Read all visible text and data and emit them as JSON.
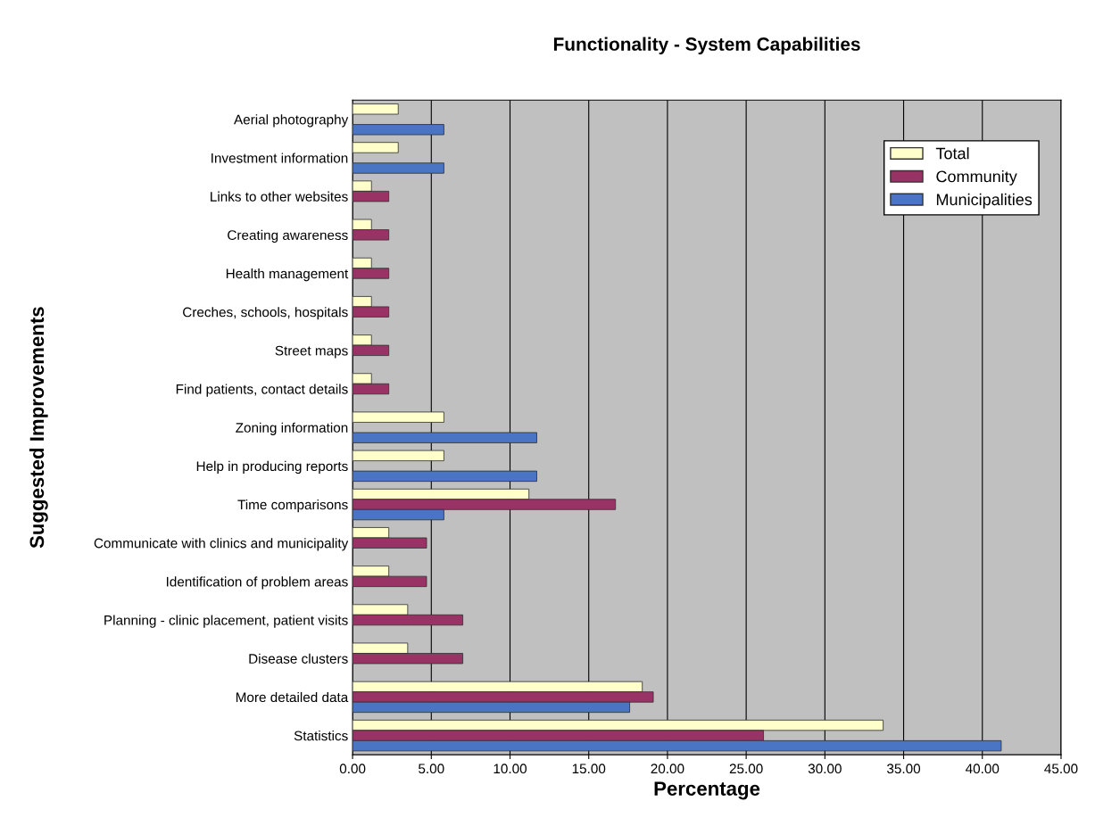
{
  "chart_data": {
    "type": "bar",
    "orientation": "horizontal",
    "title": "Functionality - System Capabilities",
    "xlabel": "Percentage",
    "ylabel": "Suggested Improvements",
    "categories": [
      "Aerial photography",
      "Investment information",
      "Links to other websites",
      "Creating awareness",
      "Health management",
      "Creches, schools, hospitals",
      "Street maps",
      "Find patients, contact details",
      "Zoning information",
      "Help in producing reports",
      "Time comparisons",
      "Communicate with clinics and municipality",
      "Identification of problem areas",
      "Planning - clinic placement, patient visits",
      "Disease clusters",
      "More detailed data",
      "Statistics"
    ],
    "series": [
      {
        "name": "Total",
        "color": "#ffffcc",
        "values": [
          2.9,
          2.9,
          1.2,
          1.2,
          1.2,
          1.2,
          1.2,
          1.2,
          5.8,
          5.8,
          11.2,
          2.3,
          2.3,
          3.5,
          3.5,
          18.4,
          33.7
        ]
      },
      {
        "name": "Community",
        "color": "#993366",
        "values": [
          null,
          null,
          2.3,
          2.3,
          2.3,
          2.3,
          2.3,
          2.3,
          null,
          null,
          16.7,
          4.7,
          4.7,
          7.0,
          7.0,
          19.1,
          26.1
        ]
      },
      {
        "name": "Municipalities",
        "color": "#4a74c4",
        "values": [
          5.8,
          5.8,
          null,
          null,
          null,
          null,
          null,
          null,
          11.7,
          11.7,
          5.8,
          null,
          null,
          null,
          null,
          17.6,
          41.2
        ]
      }
    ],
    "xlim": [
      0,
      45
    ],
    "xticks": [
      {
        "value": 0,
        "label": "0.00"
      },
      {
        "value": 5,
        "label": "5.00"
      },
      {
        "value": 10,
        "label": "10.00"
      },
      {
        "value": 15,
        "label": "15.00"
      },
      {
        "value": 20,
        "label": "20.00"
      },
      {
        "value": 25,
        "label": "25.00"
      },
      {
        "value": 30,
        "label": "30.00"
      },
      {
        "value": 35,
        "label": "35.00"
      },
      {
        "value": 40,
        "label": "40.00"
      },
      {
        "value": 45,
        "label": "45.00"
      }
    ],
    "grid": "x",
    "legend": "top right"
  }
}
